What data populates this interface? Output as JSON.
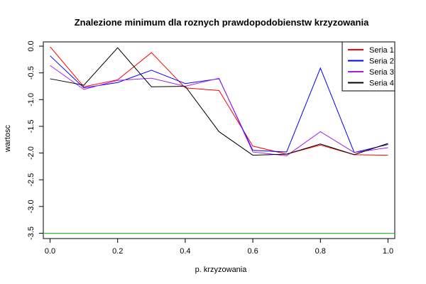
{
  "chart_data": {
    "type": "line",
    "title": "Znalezione minimum dla roznych prawdopodobienstw krzyzowania",
    "xlabel": "p. krzyzowania",
    "ylabel": "wartosc",
    "xlim": [
      -0.02,
      1.02
    ],
    "ylim": [
      -3.6,
      0.08
    ],
    "x_ticks": [
      0.0,
      0.2,
      0.4,
      0.6,
      0.8,
      1.0
    ],
    "x_tick_labels": [
      "0.0",
      "0.2",
      "0.4",
      "0.6",
      "0.8",
      "1.0"
    ],
    "y_ticks": [
      0.0,
      -0.5,
      -1.0,
      -1.5,
      -2.0,
      -2.5,
      -3.0,
      -3.5
    ],
    "y_tick_labels": [
      "0.0",
      "-0.5",
      "-1.0",
      "-1.5",
      "-2.0",
      "-2.5",
      "-3.0",
      "-3.5"
    ],
    "grid": false,
    "legend_position": "top-right",
    "x": [
      0.0,
      0.1,
      0.2,
      0.3,
      0.4,
      0.5,
      0.6,
      0.7,
      0.8,
      0.9,
      1.0
    ],
    "series": [
      {
        "name": "Seria 1",
        "color": "#ff0000",
        "values": [
          -0.01,
          -0.76,
          -0.63,
          -0.12,
          -0.78,
          -0.83,
          -1.87,
          -2.02,
          -1.85,
          -2.03,
          -2.04
        ]
      },
      {
        "name": "Seria 2",
        "color": "#0000ff",
        "values": [
          -0.18,
          -0.78,
          -0.68,
          -0.45,
          -0.7,
          -0.61,
          -1.95,
          -1.98,
          -0.41,
          -1.99,
          -1.84
        ]
      },
      {
        "name": "Seria 3",
        "color": "#a020f0",
        "values": [
          -0.36,
          -0.81,
          -0.64,
          -0.6,
          -0.75,
          -0.6,
          -1.98,
          -2.05,
          -1.6,
          -1.99,
          -1.9
        ]
      },
      {
        "name": "Seria 4",
        "color": "#000000",
        "values": [
          -0.61,
          -0.73,
          -0.03,
          -0.76,
          -0.75,
          -1.6,
          -2.04,
          -2.02,
          -1.83,
          -2.03,
          -1.82
        ]
      }
    ],
    "reference_line": {
      "y": -3.5,
      "color": "#00cc00"
    }
  }
}
